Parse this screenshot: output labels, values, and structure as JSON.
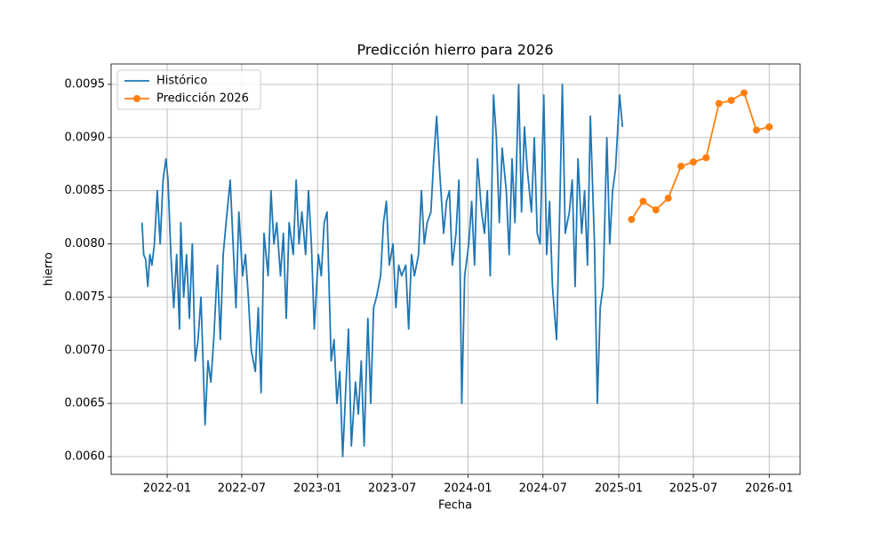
{
  "chart_data": {
    "type": "line",
    "title": "Predicción hierro para 2026",
    "x_label": "Fecha",
    "y_label": "hierro",
    "grid": true,
    "legend": "upper left",
    "xlim": [
      "2021-08-18",
      "2026-03-17"
    ],
    "xticks": [
      "2022-01",
      "2022-07",
      "2023-01",
      "2023-07",
      "2024-01",
      "2024-07",
      "2025-01",
      "2025-07",
      "2026-01"
    ],
    "ylim": [
      0.005833,
      0.009692
    ],
    "yticks": [
      {
        "value": 0.006,
        "label": "0.0060"
      },
      0.0065,
      {
        "value": 0.007,
        "label": "0.0070"
      },
      0.0075,
      {
        "value": 0.008,
        "label": "0.0080"
      },
      0.0085,
      {
        "value": 0.009,
        "label": "0.0090"
      },
      0.0095
    ],
    "series": [
      {
        "name": "Histórico",
        "color": "#1f77b4",
        "x": [
          "2021-11-01",
          "2021-11-05",
          "2021-11-10",
          "2021-11-15",
          "2021-11-20",
          "2021-11-25",
          "2021-12-01",
          "2021-12-08",
          "2021-12-15",
          "2021-12-22",
          "2021-12-29",
          "2022-01-03",
          "2022-01-10",
          "2022-01-17",
          "2022-01-24",
          "2022-01-31",
          "2022-02-03",
          "2022-02-10",
          "2022-02-17",
          "2022-02-24",
          "2022-03-03",
          "2022-03-10",
          "2022-03-17",
          "2022-03-24",
          "2022-04-03",
          "2022-04-10",
          "2022-04-17",
          "2022-04-24",
          "2022-05-03",
          "2022-05-10",
          "2022-05-17",
          "2022-05-24",
          "2022-06-03",
          "2022-06-10",
          "2022-06-17",
          "2022-06-24",
          "2022-07-03",
          "2022-07-10",
          "2022-07-17",
          "2022-07-24",
          "2022-08-03",
          "2022-08-10",
          "2022-08-17",
          "2022-08-24",
          "2022-09-03",
          "2022-09-10",
          "2022-09-17",
          "2022-09-24",
          "2022-10-03",
          "2022-10-10",
          "2022-10-17",
          "2022-10-24",
          "2022-11-03",
          "2022-11-10",
          "2022-11-17",
          "2022-11-24",
          "2022-12-03",
          "2022-12-10",
          "2022-12-17",
          "2022-12-24",
          "2023-01-03",
          "2023-01-10",
          "2023-01-17",
          "2023-01-24",
          "2023-02-03",
          "2023-02-10",
          "2023-02-17",
          "2023-02-24",
          "2023-03-03",
          "2023-03-10",
          "2023-03-17",
          "2023-03-24",
          "2023-04-03",
          "2023-04-10",
          "2023-04-17",
          "2023-04-24",
          "2023-05-03",
          "2023-05-10",
          "2023-05-17",
          "2023-05-24",
          "2023-06-03",
          "2023-06-10",
          "2023-06-17",
          "2023-06-24",
          "2023-07-03",
          "2023-07-10",
          "2023-07-17",
          "2023-07-24",
          "2023-08-03",
          "2023-08-10",
          "2023-08-17",
          "2023-08-24",
          "2023-09-03",
          "2023-09-10",
          "2023-09-17",
          "2023-09-24",
          "2023-10-03",
          "2023-10-10",
          "2023-10-17",
          "2023-10-24",
          "2023-11-03",
          "2023-11-10",
          "2023-11-17",
          "2023-11-24",
          "2023-12-03",
          "2023-12-10",
          "2023-12-17",
          "2023-12-24",
          "2024-01-03",
          "2024-01-10",
          "2024-01-17",
          "2024-01-24",
          "2024-02-03",
          "2024-02-10",
          "2024-02-17",
          "2024-02-24",
          "2024-03-03",
          "2024-03-10",
          "2024-03-17",
          "2024-03-24",
          "2024-04-03",
          "2024-04-10",
          "2024-04-17",
          "2024-04-24",
          "2024-05-03",
          "2024-05-10",
          "2024-05-17",
          "2024-05-24",
          "2024-06-03",
          "2024-06-10",
          "2024-06-17",
          "2024-06-24",
          "2024-07-03",
          "2024-07-10",
          "2024-07-17",
          "2024-07-24",
          "2024-08-03",
          "2024-08-10",
          "2024-08-17",
          "2024-08-24",
          "2024-09-03",
          "2024-09-10",
          "2024-09-17",
          "2024-09-24",
          "2024-10-03",
          "2024-10-10",
          "2024-10-17",
          "2024-10-24",
          "2024-11-03",
          "2024-11-10",
          "2024-11-17",
          "2024-11-24",
          "2024-12-03",
          "2024-12-10",
          "2024-12-17",
          "2024-12-24",
          "2025-01-03",
          "2025-01-10"
        ],
        "values": [
          0.0082,
          0.0079,
          0.00785,
          0.0076,
          0.0079,
          0.0078,
          0.008,
          0.0085,
          0.008,
          0.0086,
          0.0088,
          0.0086,
          0.0079,
          0.0074,
          0.0079,
          0.0072,
          0.0082,
          0.0075,
          0.0079,
          0.0073,
          0.008,
          0.0069,
          0.0071,
          0.0075,
          0.0063,
          0.0069,
          0.0067,
          0.0071,
          0.0078,
          0.0071,
          0.0079,
          0.0082,
          0.0086,
          0.008,
          0.0074,
          0.0083,
          0.0077,
          0.0079,
          0.0075,
          0.007,
          0.0068,
          0.0074,
          0.0066,
          0.0081,
          0.0077,
          0.0085,
          0.008,
          0.0082,
          0.0077,
          0.0081,
          0.0073,
          0.0082,
          0.0079,
          0.0086,
          0.008,
          0.0083,
          0.0079,
          0.0085,
          0.008,
          0.0072,
          0.0079,
          0.0077,
          0.0082,
          0.0083,
          0.0069,
          0.0071,
          0.0065,
          0.0068,
          0.006,
          0.0066,
          0.0072,
          0.0061,
          0.0067,
          0.0064,
          0.0069,
          0.0061,
          0.0073,
          0.0065,
          0.0074,
          0.0075,
          0.0077,
          0.0082,
          0.0084,
          0.0078,
          0.008,
          0.0074,
          0.0078,
          0.0077,
          0.0078,
          0.0072,
          0.0079,
          0.0077,
          0.0079,
          0.0085,
          0.008,
          0.0082,
          0.0083,
          0.0088,
          0.0092,
          0.0087,
          0.0081,
          0.0084,
          0.0085,
          0.0078,
          0.0081,
          0.0086,
          0.0065,
          0.0077,
          0.008,
          0.0084,
          0.0078,
          0.0088,
          0.0083,
          0.0081,
          0.0085,
          0.0077,
          0.0094,
          0.009,
          0.0082,
          0.0089,
          0.0085,
          0.0079,
          0.0088,
          0.0082,
          0.0095,
          0.0083,
          0.0091,
          0.0087,
          0.0083,
          0.009,
          0.0081,
          0.008,
          0.0094,
          0.0079,
          0.0084,
          0.0076,
          0.0071,
          0.0082,
          0.0095,
          0.0081,
          0.0083,
          0.0086,
          0.0076,
          0.0088,
          0.0081,
          0.0085,
          0.0078,
          0.0092,
          0.008,
          0.0065,
          0.0074,
          0.0076,
          0.009,
          0.008,
          0.0085,
          0.0087,
          0.0094,
          0.0091
        ]
      },
      {
        "name": "Predicción 2026",
        "color": "#ff7f0e",
        "marker": "o",
        "x": [
          "2025-02",
          "2025-03",
          "2025-04",
          "2025-05",
          "2025-06",
          "2025-07",
          "2025-08",
          "2025-09",
          "2025-10",
          "2025-11",
          "2025-12",
          "2026-01"
        ],
        "values": [
          0.00823,
          0.0084,
          0.00832,
          0.00843,
          0.00873,
          0.00877,
          0.00881,
          0.00932,
          0.00935,
          0.00942,
          0.00907,
          0.0091
        ]
      }
    ]
  }
}
